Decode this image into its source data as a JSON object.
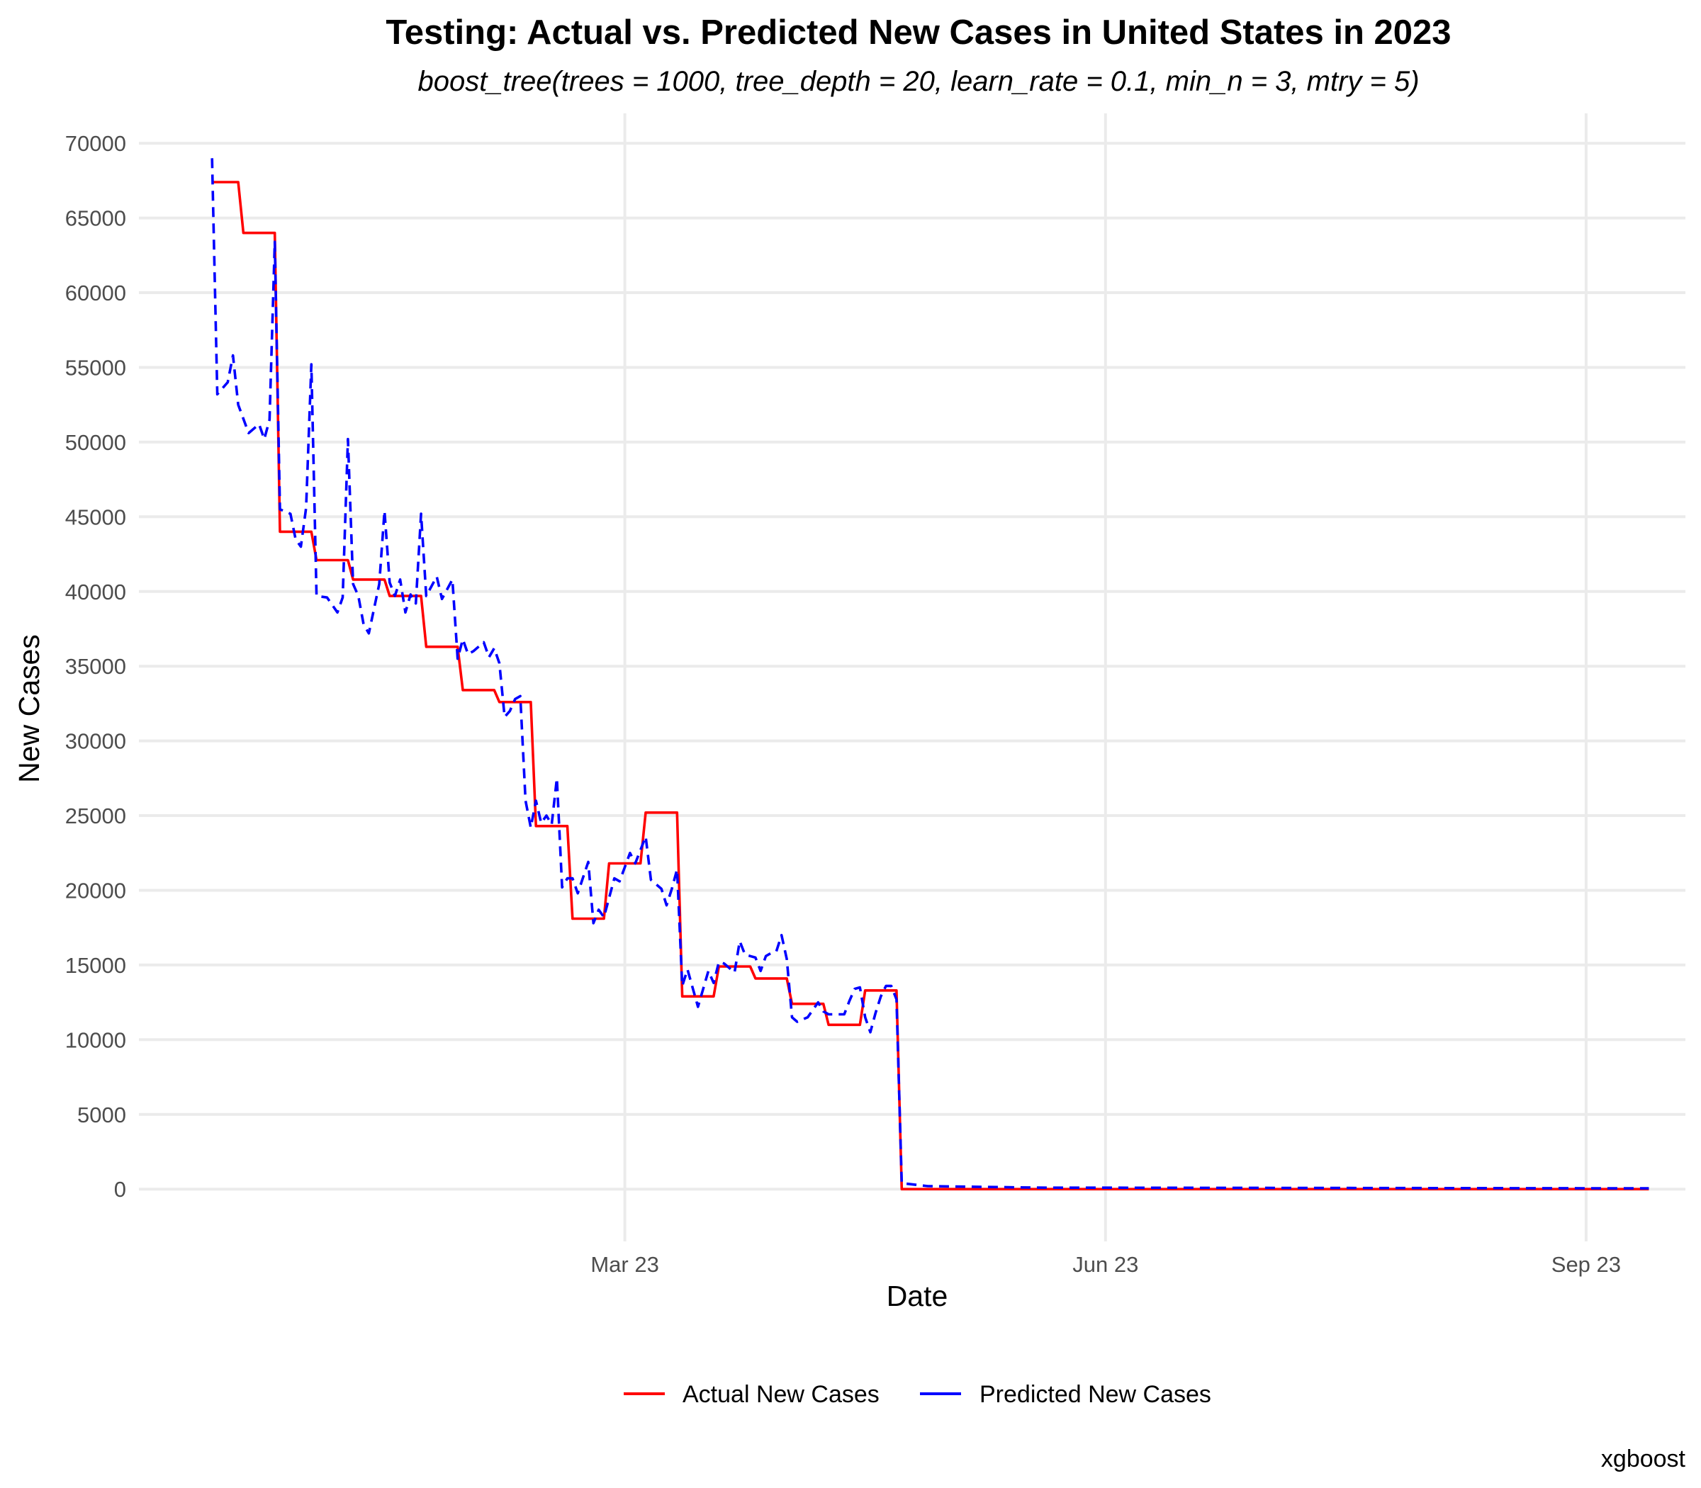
{
  "chart_data": {
    "type": "line",
    "title": "Testing: Actual vs. Predicted New Cases in United States in 2023",
    "subtitle": "boost_tree(trees = 1000, tree_depth = 20, learn_rate = 0.1, min_n = 3, mtry = 5)",
    "xlabel": "Date",
    "ylabel": "New Cases",
    "caption": "xgboost",
    "xlim": [
      "2022-12-20",
      "2023-10-12"
    ],
    "ylim": [
      -3500,
      72000
    ],
    "y_ticks": [
      0,
      5000,
      10000,
      15000,
      20000,
      25000,
      30000,
      35000,
      40000,
      45000,
      50000,
      55000,
      60000,
      65000,
      70000
    ],
    "x_ticks": [
      {
        "date": "2023-03-23",
        "label": "Mar 23"
      },
      {
        "date": "2023-06-23",
        "label": "Jun 23"
      },
      {
        "date": "2023-09-23",
        "label": "Sep 23"
      }
    ],
    "grid": true,
    "legend_position": "bottom",
    "series": [
      {
        "name": "Actual New Cases",
        "color": "#ff0000",
        "line_style": "solid",
        "points": [
          [
            "2023-01-03",
            67400
          ],
          [
            "2023-01-08",
            67400
          ],
          [
            "2023-01-09",
            64000
          ],
          [
            "2023-01-15",
            64000
          ],
          [
            "2023-01-16",
            44000
          ],
          [
            "2023-01-22",
            44000
          ],
          [
            "2023-01-23",
            42100
          ],
          [
            "2023-01-29",
            42100
          ],
          [
            "2023-01-30",
            40800
          ],
          [
            "2023-02-05",
            40800
          ],
          [
            "2023-02-06",
            39700
          ],
          [
            "2023-02-12",
            39700
          ],
          [
            "2023-02-13",
            36300
          ],
          [
            "2023-02-19",
            36300
          ],
          [
            "2023-02-20",
            33400
          ],
          [
            "2023-02-26",
            33400
          ],
          [
            "2023-02-27",
            32600
          ],
          [
            "2023-03-05",
            32600
          ],
          [
            "2023-03-06",
            24300
          ],
          [
            "2023-03-12",
            24300
          ],
          [
            "2023-03-13",
            18100
          ],
          [
            "2023-03-19",
            18100
          ],
          [
            "2023-03-20",
            21800
          ],
          [
            "2023-03-26",
            21800
          ],
          [
            "2023-03-27",
            25200
          ],
          [
            "2023-04-02",
            25200
          ],
          [
            "2023-04-03",
            12900
          ],
          [
            "2023-04-09",
            12900
          ],
          [
            "2023-04-10",
            14900
          ],
          [
            "2023-04-16",
            14900
          ],
          [
            "2023-04-17",
            14100
          ],
          [
            "2023-04-23",
            14100
          ],
          [
            "2023-04-24",
            12400
          ],
          [
            "2023-04-30",
            12400
          ],
          [
            "2023-05-01",
            11000
          ],
          [
            "2023-05-07",
            11000
          ],
          [
            "2023-05-08",
            13300
          ],
          [
            "2023-05-14",
            13300
          ],
          [
            "2023-05-15",
            0
          ],
          [
            "2023-10-05",
            0
          ]
        ]
      },
      {
        "name": "Predicted New Cases",
        "color": "#0000ff",
        "line_style": "dashed",
        "points": [
          [
            "2023-01-03",
            69000
          ],
          [
            "2023-01-04",
            53200
          ],
          [
            "2023-01-05",
            53600
          ],
          [
            "2023-01-06",
            54000
          ],
          [
            "2023-01-07",
            55800
          ],
          [
            "2023-01-08",
            52500
          ],
          [
            "2023-01-10",
            50600
          ],
          [
            "2023-01-12",
            51200
          ],
          [
            "2023-01-13",
            50200
          ],
          [
            "2023-01-14",
            51500
          ],
          [
            "2023-01-15",
            63400
          ],
          [
            "2023-01-16",
            45500
          ],
          [
            "2023-01-18",
            45200
          ],
          [
            "2023-01-19",
            43500
          ],
          [
            "2023-01-20",
            43000
          ],
          [
            "2023-01-21",
            45600
          ],
          [
            "2023-01-22",
            55200
          ],
          [
            "2023-01-23",
            39700
          ],
          [
            "2023-01-25",
            39600
          ],
          [
            "2023-01-27",
            38600
          ],
          [
            "2023-01-28",
            39600
          ],
          [
            "2023-01-29",
            50200
          ],
          [
            "2023-01-30",
            40500
          ],
          [
            "2023-01-31",
            39700
          ],
          [
            "2023-02-01",
            37800
          ],
          [
            "2023-02-02",
            37200
          ],
          [
            "2023-02-04",
            40500
          ],
          [
            "2023-02-05",
            45400
          ],
          [
            "2023-02-06",
            40600
          ],
          [
            "2023-02-07",
            39700
          ],
          [
            "2023-02-08",
            40800
          ],
          [
            "2023-02-09",
            38600
          ],
          [
            "2023-02-10",
            39800
          ],
          [
            "2023-02-11",
            39200
          ],
          [
            "2023-02-12",
            45200
          ],
          [
            "2023-02-13",
            39700
          ],
          [
            "2023-02-15",
            41000
          ],
          [
            "2023-02-16",
            39500
          ],
          [
            "2023-02-18",
            40800
          ],
          [
            "2023-02-19",
            35500
          ],
          [
            "2023-02-20",
            36800
          ],
          [
            "2023-02-21",
            35800
          ],
          [
            "2023-02-22",
            36000
          ],
          [
            "2023-02-24",
            36600
          ],
          [
            "2023-02-25",
            35600
          ],
          [
            "2023-02-26",
            36200
          ],
          [
            "2023-02-27",
            35200
          ],
          [
            "2023-02-28",
            31600
          ],
          [
            "2023-03-01",
            32000
          ],
          [
            "2023-03-02",
            32800
          ],
          [
            "2023-03-03",
            33000
          ],
          [
            "2023-03-04",
            26000
          ],
          [
            "2023-03-05",
            24200
          ],
          [
            "2023-03-06",
            26000
          ],
          [
            "2023-03-07",
            24500
          ],
          [
            "2023-03-08",
            25000
          ],
          [
            "2023-03-09",
            24400
          ],
          [
            "2023-03-10",
            27500
          ],
          [
            "2023-03-11",
            20200
          ],
          [
            "2023-03-12",
            20800
          ],
          [
            "2023-03-13",
            20800
          ],
          [
            "2023-03-14",
            19800
          ],
          [
            "2023-03-16",
            21900
          ],
          [
            "2023-03-17",
            17800
          ],
          [
            "2023-03-18",
            18700
          ],
          [
            "2023-03-19",
            18200
          ],
          [
            "2023-03-21",
            20800
          ],
          [
            "2023-03-22",
            20600
          ],
          [
            "2023-03-24",
            22500
          ],
          [
            "2023-03-25",
            21800
          ],
          [
            "2023-03-27",
            23600
          ],
          [
            "2023-03-28",
            20700
          ],
          [
            "2023-03-30",
            20100
          ],
          [
            "2023-03-31",
            19000
          ],
          [
            "2023-04-01",
            20100
          ],
          [
            "2023-04-02",
            21400
          ],
          [
            "2023-04-03",
            13600
          ],
          [
            "2023-04-04",
            14700
          ],
          [
            "2023-04-06",
            12200
          ],
          [
            "2023-04-08",
            14600
          ],
          [
            "2023-04-09",
            13800
          ],
          [
            "2023-04-10",
            15200
          ],
          [
            "2023-04-11",
            15100
          ],
          [
            "2023-04-13",
            14500
          ],
          [
            "2023-04-14",
            16600
          ],
          [
            "2023-04-15",
            15700
          ],
          [
            "2023-04-16",
            15600
          ],
          [
            "2023-04-17",
            15500
          ],
          [
            "2023-04-18",
            14600
          ],
          [
            "2023-04-19",
            15600
          ],
          [
            "2023-04-20",
            15800
          ],
          [
            "2023-04-21",
            15900
          ],
          [
            "2023-04-22",
            17000
          ],
          [
            "2023-04-23",
            15400
          ],
          [
            "2023-04-24",
            11500
          ],
          [
            "2023-04-25",
            11200
          ],
          [
            "2023-04-27",
            11500
          ],
          [
            "2023-04-29",
            12500
          ],
          [
            "2023-04-30",
            11900
          ],
          [
            "2023-05-01",
            11700
          ],
          [
            "2023-05-03",
            11700
          ],
          [
            "2023-05-04",
            11700
          ],
          [
            "2023-05-05",
            12600
          ],
          [
            "2023-05-06",
            13400
          ],
          [
            "2023-05-07",
            13500
          ],
          [
            "2023-05-08",
            11500
          ],
          [
            "2023-05-09",
            10500
          ],
          [
            "2023-05-10",
            11800
          ],
          [
            "2023-05-11",
            12900
          ],
          [
            "2023-05-12",
            13600
          ],
          [
            "2023-05-13",
            13600
          ],
          [
            "2023-05-14",
            12700
          ],
          [
            "2023-05-15",
            400
          ],
          [
            "2023-05-20",
            200
          ],
          [
            "2023-06-10",
            100
          ],
          [
            "2023-10-05",
            50
          ]
        ]
      }
    ]
  }
}
